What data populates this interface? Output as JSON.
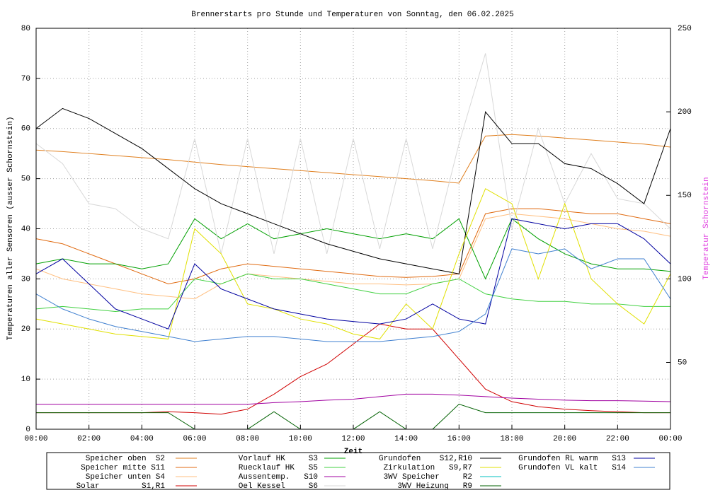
{
  "chart_data": {
    "type": "line",
    "title": "Brennerstarts pro Stunde und Temperaturen von Sonntag, den 06.02.2025",
    "x_label": "Zeit",
    "y_label": "Temperaturen aller Sensoren (ausser Schornstein)",
    "y2_label": "Temperatur Schornstein",
    "x": [
      0,
      1,
      2,
      3,
      4,
      5,
      6,
      7,
      8,
      9,
      10,
      11,
      12,
      13,
      14,
      15,
      16,
      17,
      18,
      19,
      20,
      21,
      22,
      23,
      24
    ],
    "xlim": [
      0,
      24
    ],
    "xticks": [
      {
        "value": 0,
        "label": "00:00"
      },
      {
        "value": 2,
        "label": "02:00"
      },
      {
        "value": 4,
        "label": "04:00"
      },
      {
        "value": 6,
        "label": "06:00"
      },
      {
        "value": 8,
        "label": "08:00"
      },
      {
        "value": 10,
        "label": "10:00"
      },
      {
        "value": 12,
        "label": "12:00"
      },
      {
        "value": 14,
        "label": "14:00"
      },
      {
        "value": 16,
        "label": "16:00"
      },
      {
        "value": 18,
        "label": "18:00"
      },
      {
        "value": 20,
        "label": "20:00"
      },
      {
        "value": 22,
        "label": "22:00"
      },
      {
        "value": 24,
        "label": "00:00"
      }
    ],
    "ylim": [
      0,
      80
    ],
    "yticks": [
      0,
      10,
      20,
      30,
      40,
      50,
      60,
      70,
      80
    ],
    "y2lim": [
      10,
      250
    ],
    "y2ticks": [
      50,
      100,
      150,
      200,
      250
    ],
    "grid": true,
    "series": [
      {
        "name": "Speicher oben  S2",
        "color": "#e08020",
        "values": [
          55.7,
          55.4,
          55,
          54.6,
          54.2,
          53.8,
          53.3,
          52.8,
          52.4,
          52,
          51.6,
          51.2,
          50.8,
          50.4,
          50,
          49.6,
          49.1,
          58.5,
          58.8,
          58.5,
          58.1,
          57.7,
          57.3,
          56.9,
          56.3
        ]
      },
      {
        "name": "Speicher mitte S11",
        "color": "#e06a10",
        "values": [
          38,
          37,
          35,
          33,
          31,
          29,
          30,
          32,
          33,
          32.5,
          32,
          31.5,
          31,
          30.5,
          30.3,
          30.5,
          31,
          43,
          44,
          44,
          43.5,
          43,
          43,
          42,
          41
        ]
      },
      {
        "name": "Speicher unten S4",
        "color": "#ffbf80",
        "values": [
          32,
          30,
          29,
          28,
          27,
          26.5,
          26,
          29,
          31,
          30.5,
          30,
          29.5,
          29,
          29,
          28.8,
          29,
          30,
          42,
          43,
          42.5,
          42,
          41,
          40,
          39.5,
          38.5
        ]
      },
      {
        "name": "Solar         S1,R1",
        "color": "#d00000",
        "values": [
          3.3,
          3.3,
          3.3,
          3.3,
          3.3,
          3.5,
          3.3,
          3,
          4,
          7,
          10.5,
          13,
          17,
          21,
          20,
          20,
          14,
          8,
          5.5,
          4.5,
          4,
          3.7,
          3.5,
          3.3,
          3.3
        ]
      },
      {
        "name": "Vorlauf HK     S3",
        "color": "#00a000",
        "values": [
          33,
          34,
          33,
          33,
          32,
          33,
          42,
          38,
          41,
          38,
          39,
          40,
          39,
          38,
          39,
          38,
          42,
          30,
          42,
          38,
          35,
          33,
          32,
          32,
          31.5
        ]
      },
      {
        "name": "Ruecklauf HK   S5",
        "color": "#40d040",
        "values": [
          24,
          24.5,
          24,
          23.5,
          24,
          24,
          30,
          29,
          31,
          30,
          30,
          29,
          28,
          27,
          27,
          29,
          30,
          27,
          26,
          25.5,
          25.5,
          25,
          25,
          24.5,
          24.5
        ]
      },
      {
        "name": "Aussentemp.   S10",
        "color": "#a000a0",
        "values": [
          5,
          5,
          5,
          5,
          5,
          5,
          5,
          5,
          5,
          5.3,
          5.5,
          5.8,
          6,
          6.5,
          7,
          7,
          6.8,
          6.5,
          6.2,
          6,
          5.8,
          5.7,
          5.7,
          5.6,
          5.5
        ]
      },
      {
        "name": "Oel Kessel     S6",
        "color": "#d8d8d8",
        "values": [
          57,
          53,
          45,
          44,
          40,
          38,
          58,
          35,
          58,
          35,
          58,
          35,
          58,
          36,
          58,
          36,
          57,
          75,
          40,
          60,
          45,
          55,
          46,
          45,
          40
        ]
      },
      {
        "name": "Grundofen    S12,R10",
        "color": "#000000",
        "axis": "y2",
        "values": [
          190,
          202,
          196,
          187,
          178,
          166,
          154,
          145,
          139,
          133,
          127,
          121,
          116.5,
          112,
          109,
          106,
          103,
          200,
          181,
          181,
          169,
          166,
          157,
          145,
          190
        ]
      },
      {
        "name": "Zirkulation   S9,R7",
        "color": "#e0e000",
        "values": [
          22,
          21,
          20,
          19,
          18.5,
          18,
          40,
          35,
          25,
          24,
          22,
          21,
          19,
          18,
          25,
          20,
          35,
          48,
          45,
          30,
          45,
          30,
          25,
          21,
          31
        ]
      },
      {
        "name": "3WV Speicher     R2",
        "color": "#00c0c0",
        "values": [
          0,
          0,
          0,
          0,
          0,
          0,
          0,
          0,
          0,
          0,
          0,
          0,
          0,
          0,
          0,
          0,
          0,
          0,
          0,
          0,
          0,
          0,
          0,
          0,
          0
        ]
      },
      {
        "name": "3WV Heizung   R9",
        "color": "#006000",
        "values": [
          3.3,
          3.3,
          3.3,
          3.3,
          3.3,
          3.3,
          0,
          0,
          0,
          3.5,
          0,
          0,
          0,
          3.5,
          0,
          0,
          5,
          3.3,
          3.3,
          3.3,
          3.3,
          3.3,
          3.3,
          3.3,
          3.3
        ]
      },
      {
        "name": "Grundofen RL warm   S13",
        "color": "#0000a0",
        "values": [
          31,
          34,
          29,
          24,
          22,
          20,
          33,
          28,
          26,
          24,
          23,
          22,
          21.5,
          21,
          22,
          25,
          22,
          21,
          42,
          41,
          40,
          41,
          41,
          38,
          33
        ]
      },
      {
        "name": "Grundofen VL kalt   S14",
        "color": "#4080d0",
        "values": [
          27,
          24,
          22,
          20.5,
          19.5,
          18.5,
          17.5,
          18,
          18.5,
          18.5,
          18,
          17.5,
          17.5,
          17.5,
          18,
          18.5,
          19.5,
          23,
          36,
          35,
          36,
          32,
          34,
          34,
          26
        ]
      }
    ]
  }
}
